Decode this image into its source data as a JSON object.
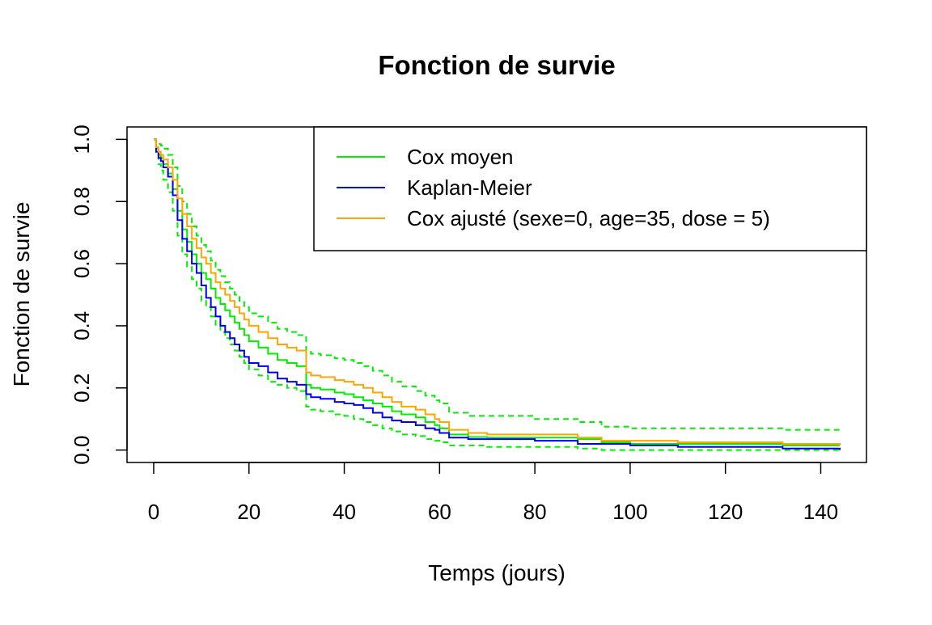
{
  "chart_data": {
    "type": "line",
    "title": "Fonction de survie",
    "xlabel": "Temps (jours)",
    "ylabel": "Fonction de survie",
    "xlim": [
      -5.6,
      149.6
    ],
    "ylim": [
      -0.04,
      1.04
    ],
    "xticks": [
      0,
      20,
      40,
      60,
      80,
      100,
      120,
      140
    ],
    "yticks": [
      0.0,
      0.2,
      0.4,
      0.6,
      0.8,
      1.0
    ],
    "xtick_labels": [
      "0",
      "20",
      "40",
      "60",
      "80",
      "100",
      "120",
      "140"
    ],
    "ytick_labels": [
      "0.0",
      "0.2",
      "0.4",
      "0.6",
      "0.8",
      "1.0"
    ],
    "grid": false,
    "legend_position": "top-right",
    "legend": [
      {
        "label": "Cox moyen",
        "color": "#00ee00"
      },
      {
        "label": "Kaplan-Meier",
        "color": "#0000ee"
      },
      {
        "label": "Cox ajusté (sexe=0, age=35, dose = 5)",
        "color": "#ffa500"
      }
    ],
    "series": [
      {
        "name": "Cox moyen",
        "color": "#00ee00",
        "style": "solid",
        "step": true,
        "x": [
          0,
          0.5,
          1,
          1.5,
          2,
          3,
          4,
          5,
          6,
          7,
          8,
          9,
          10,
          11,
          12,
          13,
          14,
          15,
          16,
          17,
          18,
          19,
          20,
          22,
          24,
          26,
          28,
          30,
          32,
          33,
          35,
          38,
          40,
          42,
          44,
          46,
          48,
          50,
          52,
          55,
          57,
          59,
          60,
          62,
          66,
          70,
          80,
          89,
          94,
          100,
          110,
          132,
          144
        ],
        "y": [
          1.0,
          0.97,
          0.95,
          0.94,
          0.92,
          0.89,
          0.84,
          0.77,
          0.71,
          0.67,
          0.63,
          0.6,
          0.57,
          0.55,
          0.52,
          0.49,
          0.47,
          0.45,
          0.43,
          0.41,
          0.39,
          0.37,
          0.35,
          0.33,
          0.31,
          0.29,
          0.28,
          0.27,
          0.21,
          0.2,
          0.195,
          0.185,
          0.18,
          0.17,
          0.16,
          0.15,
          0.14,
          0.125,
          0.115,
          0.105,
          0.09,
          0.08,
          0.07,
          0.05,
          0.042,
          0.04,
          0.04,
          0.035,
          0.025,
          0.02,
          0.02,
          0.015,
          0.015
        ]
      },
      {
        "name": "Kaplan-Meier",
        "color": "#0000ee",
        "style": "solid",
        "step": true,
        "x": [
          0,
          0.5,
          1,
          1.5,
          2,
          3,
          4,
          5,
          6,
          7,
          8,
          9,
          10,
          11,
          12,
          13,
          14,
          15,
          16,
          17,
          18,
          19,
          20,
          22,
          24,
          26,
          28,
          30,
          32,
          33,
          35,
          38,
          40,
          42,
          44,
          46,
          48,
          50,
          52,
          55,
          57,
          59,
          60,
          62,
          66,
          70,
          80,
          89,
          94,
          100,
          110,
          132,
          144
        ],
        "y": [
          1.0,
          0.96,
          0.94,
          0.93,
          0.91,
          0.88,
          0.82,
          0.74,
          0.68,
          0.64,
          0.6,
          0.57,
          0.53,
          0.49,
          0.46,
          0.43,
          0.4,
          0.38,
          0.36,
          0.34,
          0.32,
          0.3,
          0.28,
          0.27,
          0.25,
          0.23,
          0.22,
          0.21,
          0.18,
          0.17,
          0.165,
          0.155,
          0.15,
          0.145,
          0.135,
          0.12,
          0.105,
          0.095,
          0.09,
          0.08,
          0.07,
          0.065,
          0.055,
          0.04,
          0.035,
          0.035,
          0.03,
          0.02,
          0.02,
          0.015,
          0.01,
          0.005,
          0.0
        ]
      },
      {
        "name": "Cox ajusté (sexe=0, age=35, dose = 5)",
        "color": "#ffa500",
        "style": "solid",
        "step": true,
        "x": [
          0,
          0.5,
          1,
          1.5,
          2,
          3,
          4,
          5,
          6,
          7,
          8,
          9,
          10,
          11,
          12,
          13,
          14,
          15,
          16,
          17,
          18,
          19,
          20,
          22,
          24,
          26,
          28,
          30,
          32,
          33,
          35,
          38,
          40,
          42,
          44,
          46,
          48,
          50,
          52,
          55,
          57,
          59,
          60,
          62,
          66,
          70,
          80,
          89,
          94,
          100,
          110,
          132,
          144
        ],
        "y": [
          1.0,
          0.975,
          0.96,
          0.95,
          0.935,
          0.91,
          0.87,
          0.81,
          0.76,
          0.72,
          0.68,
          0.65,
          0.62,
          0.6,
          0.57,
          0.54,
          0.52,
          0.5,
          0.48,
          0.46,
          0.44,
          0.42,
          0.4,
          0.38,
          0.36,
          0.34,
          0.33,
          0.32,
          0.25,
          0.24,
          0.235,
          0.225,
          0.22,
          0.21,
          0.2,
          0.185,
          0.17,
          0.155,
          0.14,
          0.13,
          0.115,
          0.1,
          0.09,
          0.065,
          0.055,
          0.05,
          0.05,
          0.04,
          0.03,
          0.03,
          0.025,
          0.02,
          0.015
        ]
      },
      {
        "name": "Cox moyen borne supérieure",
        "color": "#00ee00",
        "style": "dashed",
        "step": true,
        "x": [
          0,
          0.5,
          1,
          1.5,
          2,
          3,
          4,
          5,
          6,
          7,
          8,
          9,
          10,
          11,
          12,
          13,
          14,
          15,
          16,
          17,
          18,
          19,
          20,
          22,
          24,
          26,
          28,
          30,
          32,
          33,
          35,
          38,
          40,
          42,
          44,
          46,
          48,
          50,
          52,
          55,
          57,
          59,
          60,
          62,
          66,
          70,
          80,
          89,
          94,
          100,
          110,
          132,
          144
        ],
        "y": [
          1.0,
          0.99,
          0.985,
          0.98,
          0.97,
          0.95,
          0.91,
          0.85,
          0.8,
          0.76,
          0.72,
          0.69,
          0.66,
          0.64,
          0.61,
          0.58,
          0.56,
          0.54,
          0.52,
          0.5,
          0.48,
          0.46,
          0.44,
          0.43,
          0.41,
          0.39,
          0.38,
          0.37,
          0.32,
          0.31,
          0.305,
          0.295,
          0.29,
          0.28,
          0.27,
          0.255,
          0.24,
          0.22,
          0.205,
          0.19,
          0.175,
          0.16,
          0.15,
          0.12,
          0.11,
          0.11,
          0.1,
          0.09,
          0.075,
          0.07,
          0.07,
          0.065,
          0.06
        ]
      },
      {
        "name": "Cox moyen borne inférieure",
        "color": "#00ee00",
        "style": "dashed",
        "step": true,
        "x": [
          0,
          0.5,
          1,
          1.5,
          2,
          3,
          4,
          5,
          6,
          7,
          8,
          9,
          10,
          11,
          12,
          13,
          14,
          15,
          16,
          17,
          18,
          19,
          20,
          22,
          24,
          26,
          28,
          30,
          32,
          33,
          35,
          38,
          40,
          42,
          44,
          46,
          48,
          50,
          52,
          55,
          57,
          59,
          60,
          62,
          66,
          70,
          80,
          89,
          94,
          100,
          110,
          132,
          144
        ],
        "y": [
          1.0,
          0.95,
          0.92,
          0.9,
          0.87,
          0.83,
          0.77,
          0.69,
          0.63,
          0.59,
          0.55,
          0.52,
          0.48,
          0.46,
          0.43,
          0.4,
          0.38,
          0.36,
          0.34,
          0.32,
          0.3,
          0.28,
          0.26,
          0.24,
          0.22,
          0.21,
          0.2,
          0.19,
          0.14,
          0.13,
          0.125,
          0.115,
          0.11,
          0.1,
          0.09,
          0.08,
          0.07,
          0.06,
          0.05,
          0.045,
          0.035,
          0.03,
          0.025,
          0.015,
          0.015,
          0.01,
          0.01,
          0.005,
          0.0,
          0.0,
          0.0,
          0.0,
          0.0
        ]
      }
    ]
  }
}
